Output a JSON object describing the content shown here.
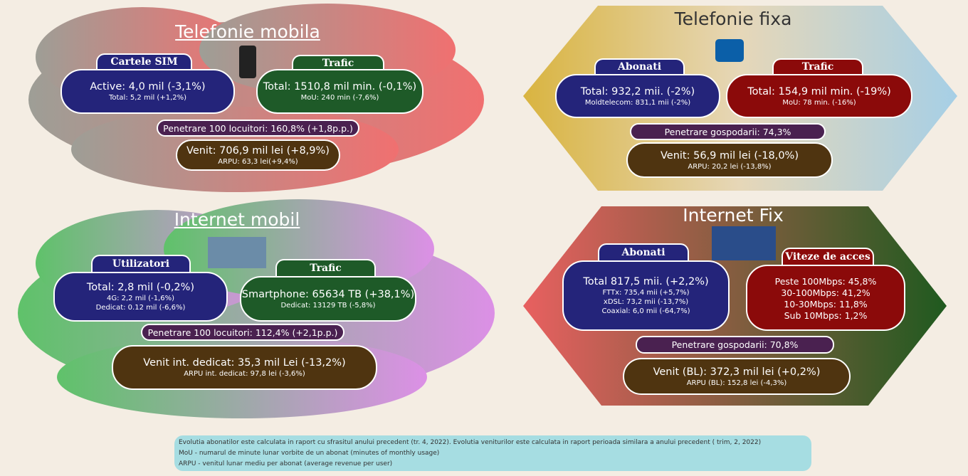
{
  "panels": [
    {
      "title": "Telefonie mobila",
      "groups": [
        {
          "label": "Cartele SIM",
          "lines": [
            "Active: 4,0 mil (-3,1%)",
            "Total: 5,2 mil (+1,2%)"
          ]
        },
        {
          "label": "Trafic",
          "lines": [
            "Total: 1510,8 mil min. (-0,1%)",
            "MoU: 240 min (-7,6%)"
          ]
        }
      ],
      "penetration": "Penetrare 100 locuitori: 160,8% (+1,8p.p.)",
      "revenue": [
        "Venit: 706,9 mil lei (+8,9%)",
        "ARPU: 63,3 lei(+9,4%)"
      ]
    },
    {
      "title": "Telefonie fixa",
      "groups": [
        {
          "label": "Abonati",
          "lines": [
            "Total: 932,2 mii.  (-2%)",
            "Moldtelecom: 831,1 mii (-2%)"
          ]
        },
        {
          "label": "Trafic",
          "lines": [
            "Total: 154,9  mil min. (-19%)",
            "MoU: 78 min. (-16%)"
          ]
        }
      ],
      "penetration": "Penetrare gospodarii: 74,3%",
      "revenue": [
        "Venit: 56,9 mil lei (-18,0%)",
        "ARPU: 20,2 lei (-13,8%)"
      ]
    },
    {
      "title": "Internet mobil",
      "groups": [
        {
          "label": "Utilizatori",
          "lines": [
            "Total: 2,8 mil (-0,2%)",
            "4G: 2,2 mil (-1,6%)",
            "Dedicat: 0.12 mil (-6,6%)"
          ]
        },
        {
          "label": "Trafic",
          "lines": [
            "Smartphone: 65634 TB (+38,1%)",
            "Dedicat: 13129 TB (-5,8%)"
          ]
        }
      ],
      "penetration": "Penetrare 100 locuitori: 112,4% (+2,1p.p.)",
      "revenue": [
        "Venit int. dedicat: 35,3 mil Lei (-13,2%)",
        "ARPU  int. dedicat: 97,8 lei  (-3,6%)"
      ]
    },
    {
      "title": "Internet Fix",
      "groups": [
        {
          "label": "Abonati",
          "lines": [
            "Total 817,5 mii.  (+2,2%)",
            "FTTx: 735,4 mii (+5,7%)",
            "xDSL: 73,2 mii (-13,7%)",
            "Coaxial: 6,0 mii (-64,7%)"
          ]
        },
        {
          "label": "Viteze de acces",
          "lines": [
            "Peste 100Mbps: 45,8%",
            "30-100Mbps: 41,2%",
            "10-30Mbps: 11,8%",
            "Sub 10Mbps: 1,2%"
          ]
        }
      ],
      "penetration": "Penetrare gospodarii: 70,8%",
      "revenue": [
        "Venit (BL): 372,3 mil lei (+0,2%)",
        "ARPU (BL): 152,8 lei (-4,3%)"
      ]
    }
  ],
  "footnotes": [
    "Evolutia abonatilor este calculata in raport cu sfrasitul anului precedent (tr. 4, 2022). Evolutia veniturilor este calculata in raport  perioada similara a anului precedent ( trim, 2, 2022)",
    "MoU - numarul de minute lunar vorbite  de un abonat (minutes of monthly usage)",
    "ARPU - venitul lunar mediu per abonat (average revenue per user)"
  ]
}
